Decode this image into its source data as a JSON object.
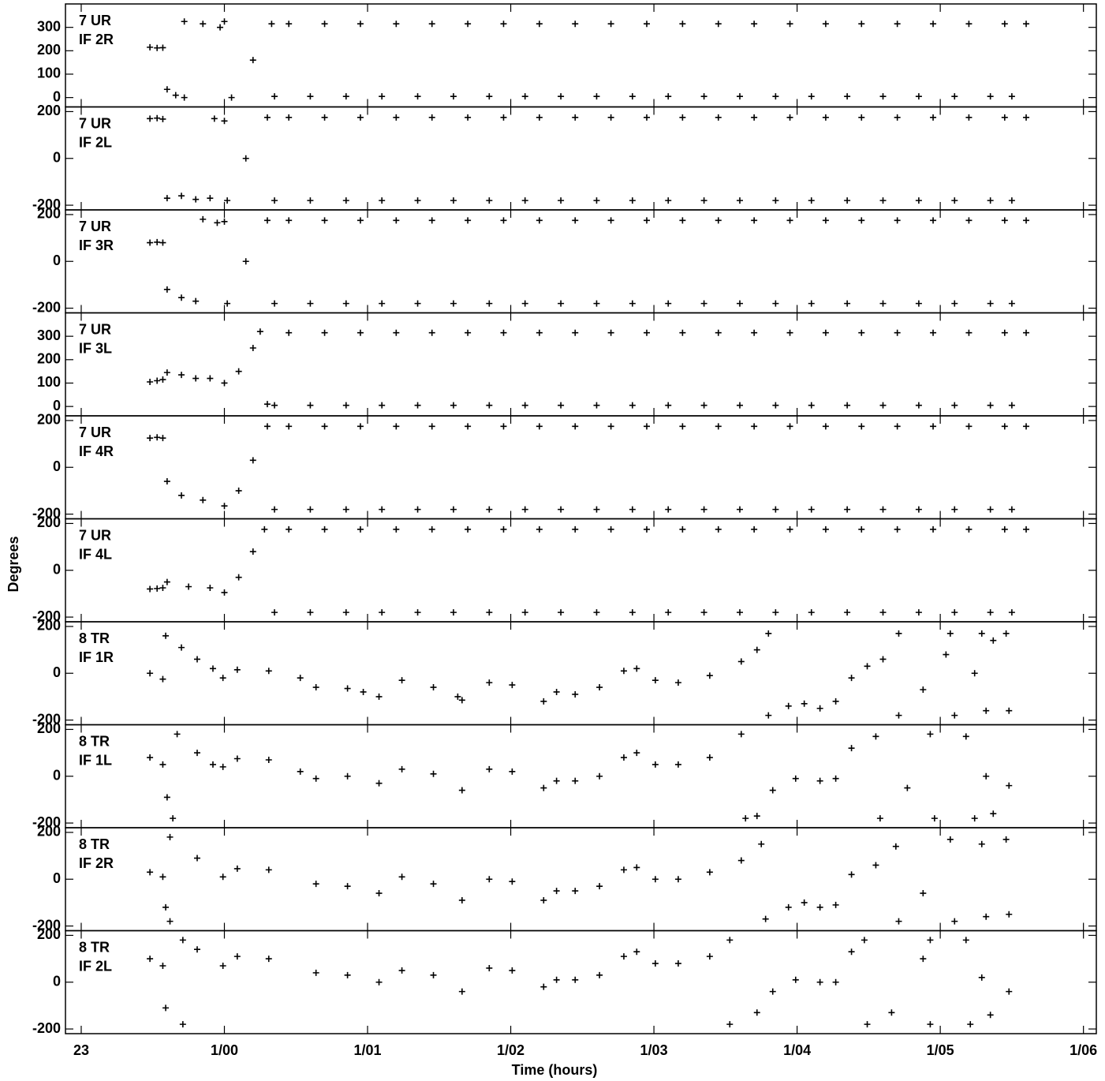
{
  "ylabel": "Degrees",
  "xlabel": "Time (hours)",
  "xlim": [
    22.89,
    30.09
  ],
  "xticks": [
    23,
    {
      "value": 24,
      "label": "1/00"
    },
    {
      "value": 25,
      "label": "1/01"
    },
    {
      "value": 26,
      "label": "1/02"
    },
    {
      "value": 27,
      "label": "1/03"
    },
    {
      "value": 28,
      "label": "1/04"
    },
    {
      "value": 29,
      "label": "1/05"
    },
    {
      "value": 30,
      "label": "1/06"
    }
  ],
  "chart_data": [
    {
      "type": "scatter",
      "annotations": [
        "7 UR",
        "IF 2R"
      ],
      "ylim": [
        -40,
        400
      ],
      "yticks": [
        0,
        100,
        200,
        300
      ],
      "x": [
        23.48,
        23.53,
        23.57,
        23.6,
        23.66,
        23.72,
        23.72,
        23.85,
        23.97,
        24.0,
        24.05,
        24.2,
        24.33,
        24.35,
        24.45,
        24.6,
        24.7,
        24.85,
        24.95,
        25.1,
        25.2,
        25.35,
        25.45,
        25.6,
        25.7,
        25.85,
        25.95,
        26.1,
        26.2,
        26.35,
        26.45,
        26.6,
        26.7,
        26.85,
        26.95,
        27.1,
        27.2,
        27.35,
        27.45,
        27.6,
        27.7,
        27.85,
        27.95,
        28.1,
        28.2,
        28.35,
        28.45,
        28.6,
        28.7,
        28.85,
        28.95,
        29.1,
        29.2,
        29.35,
        29.45,
        29.5,
        29.6
      ],
      "values": [
        215,
        212,
        213,
        35,
        10,
        0,
        325,
        315,
        300,
        325,
        0,
        160,
        315,
        5,
        315,
        5,
        315,
        5,
        315,
        5,
        315,
        5,
        315,
        5,
        315,
        5,
        315,
        5,
        315,
        5,
        315,
        5,
        315,
        5,
        315,
        5,
        315,
        5,
        315,
        5,
        315,
        5,
        315,
        5,
        315,
        5,
        315,
        5,
        315,
        5,
        315,
        5,
        315,
        5,
        315,
        5,
        315
      ]
    },
    {
      "type": "scatter",
      "annotations": [
        "7 UR",
        "IF 2L"
      ],
      "ylim": [
        -220,
        220
      ],
      "yticks": [
        -200,
        0,
        200
      ],
      "x": [
        23.48,
        23.53,
        23.57,
        23.6,
        23.7,
        23.8,
        23.9,
        23.93,
        24.0,
        24.02,
        24.15,
        24.3,
        24.35,
        24.45,
        24.6,
        24.7,
        24.85,
        24.95,
        25.1,
        25.2,
        25.35,
        25.45,
        25.6,
        25.7,
        25.85,
        25.95,
        26.1,
        26.2,
        26.35,
        26.45,
        26.6,
        26.7,
        26.85,
        26.95,
        27.1,
        27.2,
        27.35,
        27.45,
        27.6,
        27.7,
        27.85,
        27.95,
        28.1,
        28.2,
        28.35,
        28.45,
        28.6,
        28.7,
        28.85,
        28.95,
        29.1,
        29.2,
        29.35,
        29.45,
        29.5,
        29.6
      ],
      "values": [
        170,
        172,
        168,
        -170,
        -160,
        -175,
        -170,
        170,
        160,
        -180,
        0,
        175,
        -180,
        175,
        -180,
        175,
        -180,
        175,
        -180,
        175,
        -180,
        175,
        -180,
        175,
        -180,
        175,
        -180,
        175,
        -180,
        175,
        -180,
        175,
        -180,
        175,
        -180,
        175,
        -180,
        175,
        -180,
        175,
        -180,
        175,
        -180,
        175,
        -180,
        175,
        -180,
        175,
        -180,
        175,
        -180,
        175,
        -180,
        175,
        -180,
        175
      ]
    },
    {
      "type": "scatter",
      "annotations": [
        "7 UR",
        "IF 3R"
      ],
      "ylim": [
        -220,
        220
      ],
      "yticks": [
        -200,
        0,
        200
      ],
      "x": [
        23.48,
        23.53,
        23.57,
        23.6,
        23.7,
        23.8,
        23.85,
        23.95,
        24.0,
        24.02,
        24.15,
        24.3,
        24.35,
        24.45,
        24.6,
        24.7,
        24.85,
        24.95,
        25.1,
        25.2,
        25.35,
        25.45,
        25.6,
        25.7,
        25.85,
        25.95,
        26.1,
        26.2,
        26.35,
        26.45,
        26.6,
        26.7,
        26.85,
        26.95,
        27.1,
        27.2,
        27.35,
        27.45,
        27.6,
        27.7,
        27.85,
        27.95,
        28.1,
        28.2,
        28.35,
        28.45,
        28.6,
        28.7,
        28.85,
        28.95,
        29.1,
        29.2,
        29.35,
        29.45,
        29.5,
        29.6
      ],
      "values": [
        80,
        82,
        80,
        -120,
        -155,
        -170,
        180,
        165,
        170,
        -180,
        0,
        175,
        -180,
        175,
        -180,
        175,
        -180,
        175,
        -180,
        175,
        -180,
        175,
        -180,
        175,
        -180,
        175,
        -180,
        175,
        -180,
        175,
        -180,
        175,
        -180,
        175,
        -180,
        175,
        -180,
        175,
        -180,
        175,
        -180,
        175,
        -180,
        175,
        -180,
        175,
        -180,
        175,
        -180,
        175,
        -180,
        175,
        -180,
        175,
        -180,
        175
      ]
    },
    {
      "type": "scatter",
      "annotations": [
        "7 UR",
        "IF 3L"
      ],
      "ylim": [
        -40,
        400
      ],
      "yticks": [
        0,
        100,
        200,
        300
      ],
      "x": [
        23.48,
        23.53,
        23.57,
        23.6,
        23.7,
        23.8,
        23.9,
        24.0,
        24.1,
        24.2,
        24.25,
        24.3,
        24.35,
        24.45,
        24.6,
        24.7,
        24.85,
        24.95,
        25.1,
        25.2,
        25.35,
        25.45,
        25.6,
        25.7,
        25.85,
        25.95,
        26.1,
        26.2,
        26.35,
        26.45,
        26.6,
        26.7,
        26.85,
        26.95,
        27.1,
        27.2,
        27.35,
        27.45,
        27.6,
        27.7,
        27.85,
        27.95,
        28.1,
        28.2,
        28.35,
        28.45,
        28.6,
        28.7,
        28.85,
        28.95,
        29.1,
        29.2,
        29.35,
        29.45,
        29.5,
        29.6
      ],
      "values": [
        105,
        110,
        115,
        145,
        135,
        120,
        120,
        100,
        150,
        250,
        320,
        10,
        5,
        315,
        5,
        315,
        5,
        315,
        5,
        315,
        5,
        315,
        5,
        315,
        5,
        315,
        5,
        315,
        5,
        315,
        5,
        315,
        5,
        315,
        5,
        315,
        5,
        315,
        5,
        315,
        5,
        315,
        5,
        315,
        5,
        315,
        5,
        315,
        5,
        315,
        5,
        315,
        5,
        315,
        5,
        315
      ]
    },
    {
      "type": "scatter",
      "annotations": [
        "7 UR",
        "IF 4R"
      ],
      "ylim": [
        -220,
        220
      ],
      "yticks": [
        -200,
        0,
        200
      ],
      "x": [
        23.48,
        23.53,
        23.57,
        23.6,
        23.7,
        23.85,
        24.0,
        24.1,
        24.2,
        24.3,
        24.35,
        24.45,
        24.6,
        24.7,
        24.85,
        24.95,
        25.1,
        25.2,
        25.35,
        25.45,
        25.6,
        25.7,
        25.85,
        25.95,
        26.1,
        26.2,
        26.35,
        26.45,
        26.6,
        26.7,
        26.85,
        26.95,
        27.1,
        27.2,
        27.35,
        27.45,
        27.6,
        27.7,
        27.85,
        27.95,
        28.1,
        28.2,
        28.35,
        28.45,
        28.6,
        28.7,
        28.85,
        28.95,
        29.1,
        29.2,
        29.35,
        29.45,
        29.5,
        29.6
      ],
      "values": [
        125,
        128,
        125,
        -60,
        -120,
        -140,
        -165,
        -100,
        30,
        175,
        -180,
        175,
        -180,
        175,
        -180,
        175,
        -180,
        175,
        -180,
        175,
        -180,
        175,
        -180,
        175,
        -180,
        175,
        -180,
        175,
        -180,
        175,
        -180,
        175,
        -180,
        175,
        -180,
        175,
        -180,
        175,
        -180,
        175,
        -180,
        175,
        -180,
        175,
        -180,
        175,
        -180,
        175,
        -180,
        175,
        -180,
        175,
        -180,
        175
      ]
    },
    {
      "type": "scatter",
      "annotations": [
        "7 UR",
        "IF 4L"
      ],
      "ylim": [
        -220,
        220
      ],
      "yticks": [
        -200,
        0,
        200
      ],
      "x": [
        23.48,
        23.53,
        23.57,
        23.6,
        23.75,
        23.9,
        24.0,
        24.1,
        24.2,
        24.28,
        24.35,
        24.45,
        24.6,
        24.7,
        24.85,
        24.95,
        25.1,
        25.2,
        25.35,
        25.45,
        25.6,
        25.7,
        25.85,
        25.95,
        26.1,
        26.2,
        26.35,
        26.45,
        26.6,
        26.7,
        26.85,
        26.95,
        27.1,
        27.2,
        27.35,
        27.45,
        27.6,
        27.7,
        27.85,
        27.95,
        28.1,
        28.2,
        28.35,
        28.45,
        28.6,
        28.7,
        28.85,
        28.95,
        29.1,
        29.2,
        29.35,
        29.45,
        29.5,
        29.6
      ],
      "values": [
        -80,
        -78,
        -75,
        -50,
        -70,
        -75,
        -95,
        -30,
        80,
        175,
        -180,
        175,
        -180,
        175,
        -180,
        175,
        -180,
        175,
        -180,
        175,
        -180,
        175,
        -180,
        175,
        -180,
        175,
        -180,
        175,
        -180,
        175,
        -180,
        175,
        -180,
        175,
        -180,
        175,
        -180,
        175,
        -180,
        175,
        -180,
        175,
        -180,
        175,
        -180,
        175,
        -180,
        175,
        -180,
        175,
        -180,
        175,
        -180,
        175
      ]
    },
    {
      "type": "scatter",
      "annotations": [
        "8 TR",
        "IF 1R"
      ],
      "ylim": [
        -220,
        220
      ],
      "yticks": [
        -200,
        0,
        200
      ],
      "x": [
        23.48,
        23.57,
        23.59,
        23.7,
        23.81,
        23.92,
        23.99,
        24.09,
        24.31,
        24.53,
        24.64,
        24.86,
        24.97,
        25.08,
        25.24,
        25.46,
        25.63,
        25.66,
        25.85,
        26.01,
        26.23,
        26.32,
        26.45,
        26.62,
        26.79,
        26.88,
        27.01,
        27.17,
        27.39,
        27.61,
        27.72,
        27.8,
        27.8,
        27.94,
        28.05,
        28.16,
        28.27,
        28.38,
        28.49,
        28.6,
        28.71,
        28.71,
        28.88,
        29.04,
        29.07,
        29.1,
        29.24,
        29.29,
        29.32,
        29.37,
        29.46,
        29.48
      ],
      "values": [
        0,
        -25,
        160,
        110,
        60,
        20,
        -20,
        15,
        10,
        -20,
        -60,
        -65,
        -80,
        -100,
        -30,
        -60,
        -100,
        -115,
        -40,
        -50,
        -120,
        -80,
        -90,
        -60,
        10,
        20,
        -30,
        -40,
        -10,
        50,
        100,
        170,
        -180,
        -140,
        -130,
        -150,
        -120,
        -20,
        30,
        60,
        170,
        -180,
        -70,
        80,
        170,
        -180,
        0,
        170,
        -160,
        140,
        170,
        -160
      ]
    },
    {
      "type": "scatter",
      "annotations": [
        "8 TR",
        "IF 1L"
      ],
      "ylim": [
        -220,
        220
      ],
      "yticks": [
        -200,
        0,
        200
      ],
      "x": [
        23.48,
        23.57,
        23.6,
        23.64,
        23.67,
        23.81,
        23.92,
        23.99,
        24.09,
        24.31,
        24.53,
        24.64,
        24.86,
        25.08,
        25.24,
        25.46,
        25.66,
        25.85,
        26.01,
        26.23,
        26.32,
        26.45,
        26.62,
        26.79,
        26.88,
        27.01,
        27.17,
        27.39,
        27.61,
        27.64,
        27.72,
        27.83,
        27.99,
        28.16,
        28.27,
        28.38,
        28.55,
        28.58,
        28.77,
        28.93,
        28.96,
        29.18,
        29.24,
        29.32,
        29.37,
        29.48
      ],
      "values": [
        80,
        50,
        -90,
        -180,
        180,
        100,
        50,
        40,
        75,
        70,
        20,
        -10,
        0,
        -30,
        30,
        10,
        -60,
        30,
        20,
        -50,
        -20,
        -20,
        0,
        80,
        100,
        50,
        50,
        80,
        180,
        -180,
        -170,
        -60,
        -10,
        -20,
        -10,
        120,
        170,
        -180,
        -50,
        180,
        -180,
        170,
        -180,
        0,
        -160,
        -40
      ]
    },
    {
      "type": "scatter",
      "annotations": [
        "8 TR",
        "IF 2R"
      ],
      "ylim": [
        -220,
        220
      ],
      "yticks": [
        -200,
        0,
        200
      ],
      "x": [
        23.48,
        23.57,
        23.59,
        23.62,
        23.62,
        23.81,
        23.99,
        24.09,
        24.31,
        24.64,
        24.86,
        25.08,
        25.24,
        25.46,
        25.66,
        25.85,
        26.01,
        26.23,
        26.32,
        26.45,
        26.62,
        26.79,
        26.88,
        27.01,
        27.17,
        27.39,
        27.61,
        27.75,
        27.78,
        27.94,
        28.05,
        28.16,
        28.27,
        28.38,
        28.55,
        28.69,
        28.71,
        28.88,
        29.07,
        29.1,
        29.29,
        29.32,
        29.46,
        29.48
      ],
      "values": [
        30,
        10,
        -120,
        -180,
        180,
        90,
        10,
        45,
        40,
        -20,
        -30,
        -60,
        10,
        -20,
        -90,
        0,
        -10,
        -90,
        -50,
        -50,
        -30,
        40,
        50,
        0,
        0,
        30,
        80,
        150,
        -170,
        -120,
        -100,
        -120,
        -110,
        20,
        60,
        140,
        -180,
        -60,
        170,
        -180,
        150,
        -160,
        170,
        -150
      ]
    },
    {
      "type": "scatter",
      "annotations": [
        "8 TR",
        "IF 2L"
      ],
      "ylim": [
        -220,
        220
      ],
      "yticks": [
        -200,
        0,
        200
      ],
      "x": [
        23.48,
        23.57,
        23.59,
        23.71,
        23.71,
        23.81,
        23.99,
        24.09,
        24.31,
        24.64,
        24.86,
        25.08,
        25.24,
        25.46,
        25.66,
        25.85,
        26.01,
        26.23,
        26.32,
        26.45,
        26.62,
        26.79,
        26.88,
        27.01,
        27.17,
        27.39,
        27.53,
        27.53,
        27.72,
        27.83,
        27.99,
        28.16,
        28.27,
        28.38,
        28.47,
        28.49,
        28.66,
        28.88,
        28.93,
        28.93,
        29.18,
        29.21,
        29.29,
        29.35,
        29.48
      ],
      "values": [
        100,
        70,
        -110,
        -180,
        180,
        140,
        70,
        110,
        100,
        40,
        30,
        0,
        50,
        30,
        -40,
        60,
        50,
        -20,
        10,
        10,
        30,
        110,
        130,
        80,
        80,
        110,
        180,
        -180,
        -130,
        -40,
        10,
        0,
        0,
        130,
        180,
        -180,
        -130,
        100,
        180,
        -180,
        180,
        -180,
        20,
        -140,
        -40
      ]
    }
  ]
}
